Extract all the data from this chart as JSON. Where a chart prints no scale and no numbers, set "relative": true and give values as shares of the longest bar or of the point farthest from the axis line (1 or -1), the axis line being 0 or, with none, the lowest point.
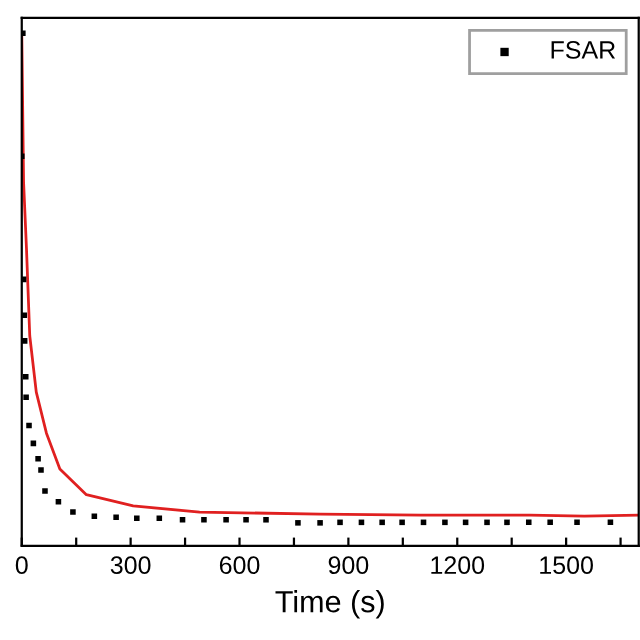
{
  "chart_data": {
    "type": "line",
    "xlabel": "Time (s)",
    "relative": true,
    "xlim": [
      0,
      1700
    ],
    "xticks": [
      0,
      {
        "value": 150,
        "label": null
      },
      300,
      {
        "value": 450,
        "label": null
      },
      600,
      {
        "value": 750,
        "label": null
      },
      900,
      {
        "value": 1050,
        "label": null
      },
      1200,
      {
        "value": 1350,
        "label": null
      },
      1500,
      {
        "value": 1650,
        "label": null
      }
    ],
    "legend": "top right",
    "grid": false,
    "series": [
      {
        "name": "FSAR",
        "type": "scatter",
        "marker": "square",
        "color": "#000000",
        "x": [
          0,
          3,
          5,
          7,
          8,
          11,
          12,
          20,
          32,
          45,
          53,
          64,
          101,
          141,
          200,
          260,
          317,
          379,
          443,
          502,
          563,
          618,
          673,
          761,
          822,
          877,
          936,
          993,
          1048,
          1107,
          1166,
          1223,
          1282,
          1337,
          1397,
          1456,
          1530,
          1622
        ],
        "values": [
          0.76,
          1.0,
          0.52,
          0.45,
          0.4,
          0.33,
          0.29,
          0.235,
          0.2,
          0.17,
          0.148,
          0.107,
          0.086,
          0.066,
          0.058,
          0.056,
          0.054,
          0.054,
          0.051,
          0.051,
          0.051,
          0.051,
          0.051,
          0.045,
          0.045,
          0.046,
          0.046,
          0.046,
          0.046,
          0.046,
          0.046,
          0.046,
          0.046,
          0.046,
          0.046,
          0.046,
          0.046,
          0.046
        ]
      },
      {
        "color": "#e02020",
        "line_style": "solid",
        "x": [
          0,
          5,
          13,
          22,
          40,
          68,
          105,
          178,
          307,
          490,
          822,
          1100,
          1400,
          1550,
          1700
        ],
        "values": [
          1.0,
          0.71,
          0.58,
          0.41,
          0.3,
          0.22,
          0.15,
          0.1,
          0.078,
          0.066,
          0.062,
          0.06,
          0.06,
          0.058,
          0.06
        ]
      }
    ]
  }
}
